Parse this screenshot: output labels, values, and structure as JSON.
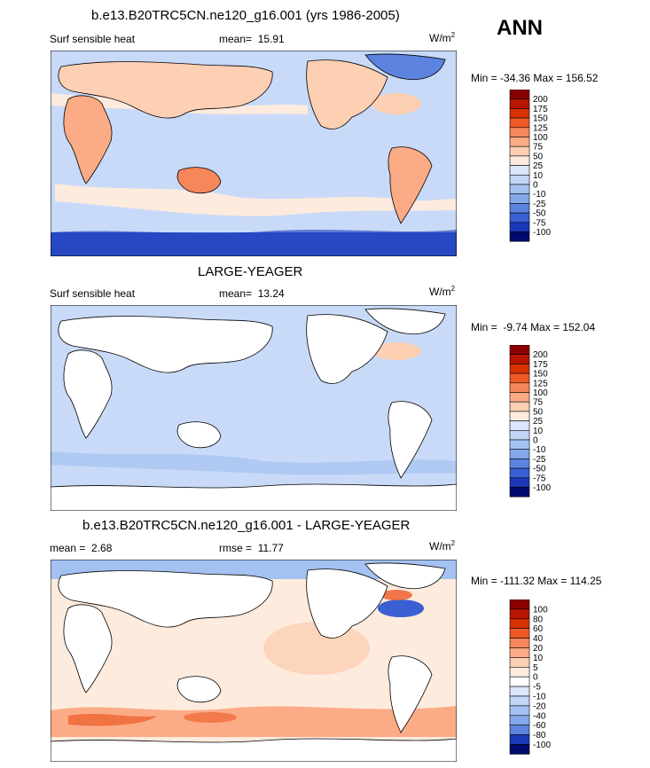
{
  "season": "ANN",
  "chart_data": [
    {
      "type": "heatmap",
      "title": "b.e13.B20TRC5CN.ne120_g16.001 (yrs 1986-2005)",
      "left_label": "Surf sensible heat",
      "stat_label": "mean=",
      "stat_value": "15.91",
      "units": "W/m",
      "units_exp": "2",
      "min_label": "Min =",
      "min_value": "-34.36",
      "max_label": "Max =",
      "max_value": "156.52",
      "colorbar": {
        "levels": [
          "200",
          "175",
          "150",
          "125",
          "100",
          "75",
          "50",
          "25",
          "10",
          "0",
          "-10",
          "-25",
          "-50",
          "-75",
          "-100"
        ],
        "colors": [
          "#8a0000",
          "#b81500",
          "#d83200",
          "#ed5a25",
          "#f7865a",
          "#fbab85",
          "#fdcfb3",
          "#fdebde",
          "#dae6fb",
          "#c2d6f7",
          "#a4c2f1",
          "#84a8ea",
          "#5c83e0",
          "#3a5fd3",
          "#1a38b8",
          "#020a70"
        ]
      }
    },
    {
      "type": "heatmap",
      "title": "LARGE-YEAGER",
      "left_label": "Surf sensible heat",
      "stat_label": "mean=",
      "stat_value": "13.24",
      "units": "W/m",
      "units_exp": "2",
      "min_label": "Min =",
      "min_value": "-9.74",
      "max_label": "Max =",
      "max_value": "152.04",
      "colorbar": {
        "levels": [
          "200",
          "175",
          "150",
          "125",
          "100",
          "75",
          "50",
          "25",
          "10",
          "0",
          "-10",
          "-25",
          "-50",
          "-75",
          "-100"
        ],
        "colors": [
          "#8a0000",
          "#b81500",
          "#d83200",
          "#ed5a25",
          "#f7865a",
          "#fbab85",
          "#fdcfb3",
          "#fdebde",
          "#dae6fb",
          "#c2d6f7",
          "#a4c2f1",
          "#84a8ea",
          "#5c83e0",
          "#3a5fd3",
          "#1a38b8",
          "#020a70"
        ]
      }
    },
    {
      "type": "heatmap",
      "title": "b.e13.B20TRC5CN.ne120_g16.001 - LARGE-YEAGER",
      "left_label": "mean =",
      "left_value": "2.68",
      "stat_label": "rmse =",
      "stat_value": "11.77",
      "units": "W/m",
      "units_exp": "2",
      "min_label": "Min =",
      "min_value": "-111.32",
      "max_label": "Max =",
      "max_value": "114.25",
      "colorbar": {
        "levels": [
          "100",
          "80",
          "60",
          "40",
          "20",
          "10",
          "5",
          "0",
          "-5",
          "-10",
          "-20",
          "-40",
          "-60",
          "-80",
          "-100"
        ],
        "colors": [
          "#8a0000",
          "#b81500",
          "#d83200",
          "#ed5a25",
          "#f7865a",
          "#fbab85",
          "#fdcfb3",
          "#fdebde",
          "#ffffff",
          "#dae6fb",
          "#c2d6f7",
          "#a4c2f1",
          "#84a8ea",
          "#5c83e0",
          "#1a38b8",
          "#020a70"
        ]
      }
    }
  ]
}
